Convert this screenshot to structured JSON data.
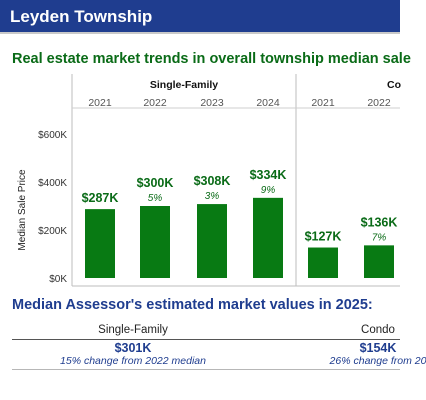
{
  "header": {
    "title": "Leyden Township"
  },
  "trends_heading": "Real estate market trends in overall township median sale",
  "chart_data": {
    "type": "bar",
    "ylabel": "Median Sale Price",
    "ylim": [
      0,
      700000
    ],
    "yticks": [
      "$0K",
      "$200K",
      "$400K",
      "$600K"
    ],
    "grid": false,
    "color": "#087a13",
    "groups": [
      {
        "name": "Single-Family",
        "categories": [
          "2021",
          "2022",
          "2023",
          "2024"
        ],
        "values": [
          287000,
          300000,
          308000,
          334000
        ],
        "value_labels": [
          "$287K",
          "$300K",
          "$308K",
          "$334K"
        ],
        "change_labels": [
          "",
          "5%",
          "3%",
          "9%"
        ]
      },
      {
        "name": "Co",
        "categories": [
          "2021",
          "2022"
        ],
        "values": [
          127000,
          136000
        ],
        "value_labels": [
          "$127K",
          "$136K"
        ],
        "change_labels": [
          "",
          "7%"
        ]
      }
    ]
  },
  "assessor": {
    "heading": "Median Assessor's estimated market values in 2025:",
    "items": [
      {
        "label": "Single-Family",
        "value": "$301K",
        "change": "15% change from 2022 median"
      },
      {
        "label": "Condo",
        "value": "$154K",
        "change": "26% change from 20"
      }
    ]
  },
  "colors": {
    "banner": "#1f3d8f",
    "heading_green": "#0a6b17",
    "heading_blue": "#1f3d8f",
    "bar": "#087a13"
  }
}
